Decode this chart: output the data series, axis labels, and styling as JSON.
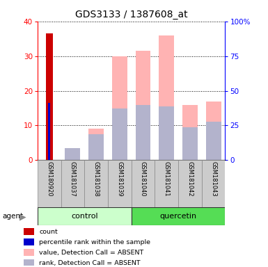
{
  "title": "GDS3133 / 1387608_at",
  "samples": [
    "GSM180920",
    "GSM181037",
    "GSM181038",
    "GSM181039",
    "GSM181040",
    "GSM181041",
    "GSM181042",
    "GSM181043"
  ],
  "groups": [
    "control",
    "control",
    "control",
    "control",
    "quercetin",
    "quercetin",
    "quercetin",
    "quercetin"
  ],
  "count_values": [
    36.5,
    0,
    0,
    0,
    0,
    0,
    0,
    0
  ],
  "percentile_values": [
    16.5,
    0,
    0,
    0,
    0,
    0,
    0,
    0
  ],
  "absent_value": [
    0,
    3.0,
    9.0,
    30.0,
    31.5,
    36.0,
    16.0,
    17.0
  ],
  "absent_rank": [
    0,
    3.5,
    7.5,
    15.0,
    16.0,
    15.5,
    9.5,
    11.0
  ],
  "ylim_left": [
    0,
    40
  ],
  "ylim_right": [
    0,
    100
  ],
  "yticks_left": [
    0,
    10,
    20,
    30,
    40
  ],
  "yticks_right": [
    0,
    25,
    50,
    75,
    100
  ],
  "ytick_labels_right": [
    "0",
    "25",
    "50",
    "75",
    "100%"
  ],
  "color_count": "#cc0000",
  "color_percentile": "#0000cc",
  "color_absent_value": "#ffb3b3",
  "color_absent_rank": "#b3b3cc",
  "color_control_bg": "#ccffcc",
  "color_quercetin_bg": "#55dd55",
  "color_sample_bg": "#cccccc",
  "figsize": [
    3.85,
    3.84
  ],
  "dpi": 100
}
